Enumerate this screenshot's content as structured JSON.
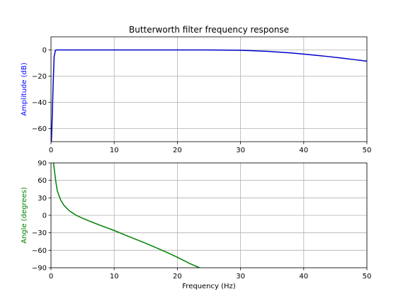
{
  "chart_data": [
    {
      "type": "line",
      "title": "Butterworth filter frequency response",
      "xlabel": "",
      "ylabel": "Amplitude (dB)",
      "xlim": [
        0,
        50
      ],
      "ylim": [
        -70,
        10
      ],
      "xticks": [
        0,
        10,
        20,
        30,
        40,
        50
      ],
      "yticks": [
        0,
        -20,
        -40,
        -60
      ],
      "xtick_labels": [
        "0",
        "10",
        "20",
        "30",
        "40",
        "50"
      ],
      "ytick_labels": [
        "0",
        "−20",
        "−40",
        "−60"
      ],
      "grid": true,
      "label_color": "#0000ff",
      "series": [
        {
          "color": "#0000cc",
          "x": [
            0.05,
            0.2,
            0.35,
            0.5,
            0.7,
            1,
            2,
            5,
            10,
            15,
            20,
            22,
            24,
            26,
            28,
            30,
            32,
            34,
            36,
            38,
            40,
            42,
            44,
            46,
            48,
            50
          ],
          "y": [
            -72,
            -50,
            -25,
            -5,
            -0.2,
            0,
            0,
            0,
            0,
            0,
            0,
            0,
            -0.02,
            -0.06,
            -0.15,
            -0.3,
            -0.6,
            -1.0,
            -1.6,
            -2.3,
            -3.2,
            -4.1,
            -5.1,
            -6.2,
            -7.4,
            -8.6
          ]
        }
      ]
    },
    {
      "type": "line",
      "title": "",
      "xlabel": "Frequency (Hz)",
      "ylabel": "Angle (degrees)",
      "xlim": [
        0,
        50
      ],
      "ylim": [
        -90,
        90
      ],
      "xticks": [
        0,
        10,
        20,
        30,
        40,
        50
      ],
      "yticks": [
        90,
        60,
        30,
        0,
        -30,
        -60,
        -90
      ],
      "xtick_labels": [
        "0",
        "10",
        "20",
        "30",
        "40",
        "50"
      ],
      "ytick_labels": [
        "90",
        "60",
        "30",
        "0",
        "−30",
        "−60",
        "−90"
      ],
      "grid": true,
      "label_color": "#008000",
      "series": [
        {
          "color": "#008000",
          "x": [
            0.4,
            0.6,
            0.8,
            1.0,
            1.5,
            2,
            2.5,
            3,
            4,
            5,
            6,
            8,
            10,
            12,
            15,
            18,
            20,
            22,
            23.5
          ],
          "y": [
            90,
            72,
            55,
            42,
            27,
            18,
            12,
            7,
            0,
            -5,
            -9.5,
            -18,
            -26,
            -35,
            -48,
            -62,
            -72,
            -83,
            -90
          ]
        }
      ]
    }
  ]
}
